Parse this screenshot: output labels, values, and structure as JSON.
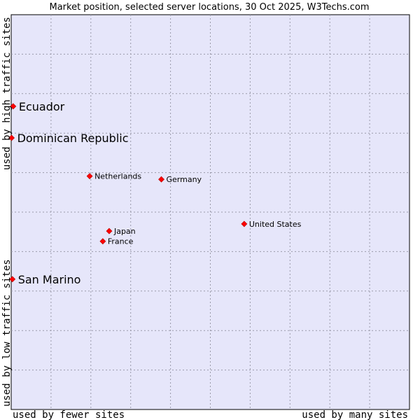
{
  "chart_data": {
    "type": "scatter",
    "title": "Market position, selected server locations, 30 Oct 2025, W3Techs.com",
    "xlabel_left": "used by fewer sites",
    "xlabel_right": "used by many sites",
    "ylabel_bottom": "used by low traffic sites",
    "ylabel_top": "used by high traffic sites",
    "xlim": [
      0,
      100
    ],
    "ylim": [
      0,
      100
    ],
    "grid": true,
    "point_color": "#ff0000",
    "plot_background": "#e6e6fa",
    "points": [
      {
        "label": "Ecuador",
        "x": 0.5,
        "y": 76.8,
        "emphasis": true
      },
      {
        "label": "Dominican Republic",
        "x": 0.1,
        "y": 68.8,
        "emphasis": true
      },
      {
        "label": "Netherlands",
        "x": 19.7,
        "y": 59.1,
        "emphasis": false
      },
      {
        "label": "Germany",
        "x": 37.7,
        "y": 58.3,
        "emphasis": false
      },
      {
        "label": "United States",
        "x": 58.5,
        "y": 47.0,
        "emphasis": false
      },
      {
        "label": "Japan",
        "x": 24.6,
        "y": 45.2,
        "emphasis": false
      },
      {
        "label": "France",
        "x": 23.0,
        "y": 42.6,
        "emphasis": false
      },
      {
        "label": "San Marino",
        "x": 0.3,
        "y": 33.0,
        "emphasis": true
      }
    ]
  }
}
